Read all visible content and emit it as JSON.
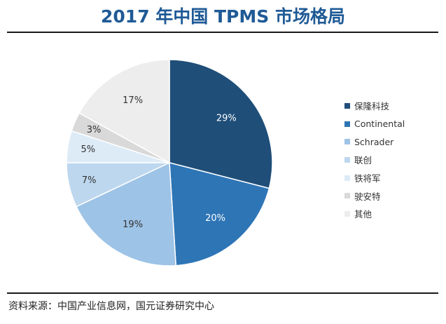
{
  "chart_data": {
    "type": "pie",
    "title": "2017 年中国 TPMS 市场格局",
    "series": [
      {
        "name": "保隆科技",
        "value": 29,
        "label": "29%",
        "color": "#1f4e79"
      },
      {
        "name": "Continental",
        "value": 20,
        "label": "20%",
        "color": "#2e75b6"
      },
      {
        "name": "Schrader",
        "value": 19,
        "label": "19%",
        "color": "#9dc3e6"
      },
      {
        "name": "联创",
        "value": 7,
        "label": "7%",
        "color": "#bdd7ee"
      },
      {
        "name": "铁将军",
        "value": 5,
        "label": "5%",
        "color": "#ddebf7"
      },
      {
        "name": "驶安特",
        "value": 3,
        "label": "3%",
        "color": "#d9d9d9"
      },
      {
        "name": "其他",
        "value": 17,
        "label": "17%",
        "color": "#ededed"
      }
    ],
    "legend_position": "right",
    "start_angle": "12 o'clock",
    "direction": "clockwise"
  },
  "source": "资料来源：中国产业信息网，国元证券研究中心"
}
